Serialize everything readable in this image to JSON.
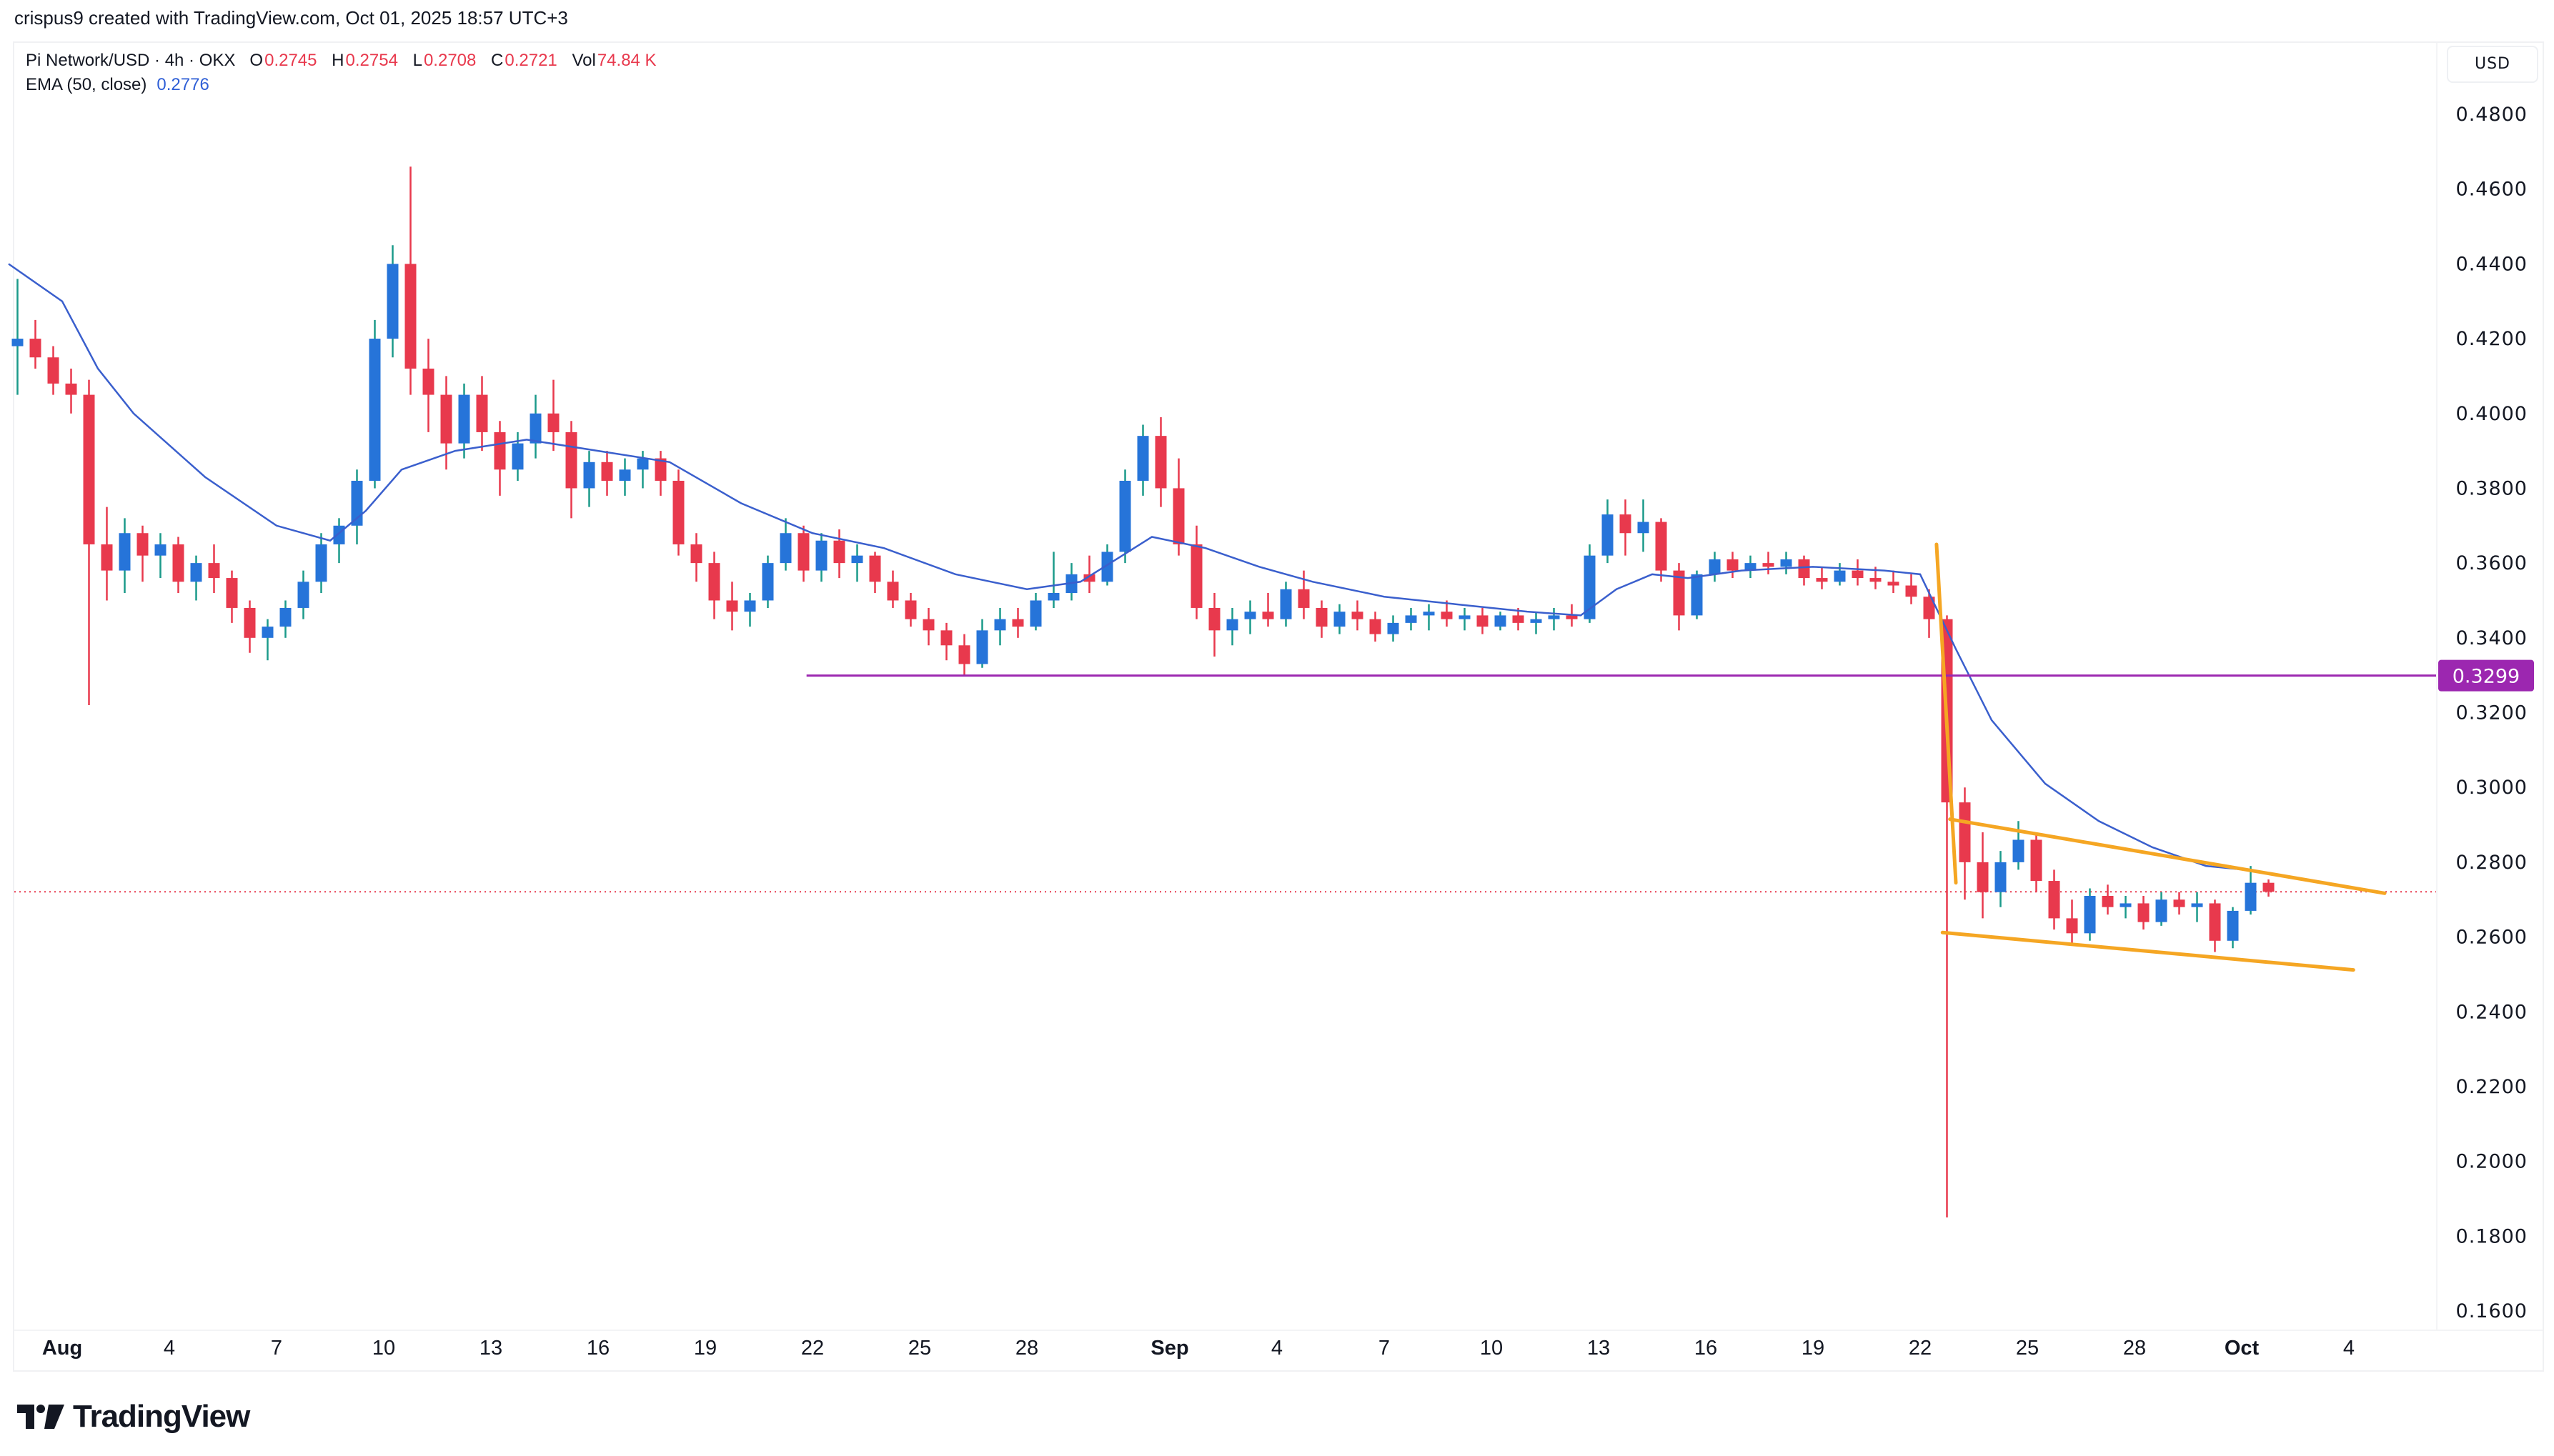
{
  "header": {
    "credit": "crispus9 created with TradingView.com, Oct 01, 2025 18:57 UTC+3"
  },
  "legend": {
    "symbol": "Pi Network/USD · 4h · OKX",
    "open_label": "O",
    "open": "0.2745",
    "high_label": "H",
    "high": "0.2754",
    "low_label": "L",
    "low": "0.2708",
    "close_label": "C",
    "close": "0.2721",
    "vol_label": "Vol",
    "vol": "74.84 K",
    "ema_label": "EMA (50, close)",
    "ema_value": "0.2776"
  },
  "currency_button": "USD",
  "brand": "TradingView",
  "colors": {
    "up": "#2674d9",
    "up_wick": "#1b9a8a",
    "down": "#e8394d",
    "ema": "#3a5fcd",
    "support": "#9c27b0",
    "pattern": "#f5a623",
    "last_price": "#e8394d"
  },
  "chart_data": {
    "type": "candlestick",
    "interval": "4h",
    "ylim": [
      0.15,
      0.49
    ],
    "y_ticks": [
      "0.4800",
      "0.4600",
      "0.4400",
      "0.4200",
      "0.4000",
      "0.3800",
      "0.3600",
      "0.3400",
      "0.3200",
      "0.3000",
      "0.2800",
      "0.2600",
      "0.2400",
      "0.2200",
      "0.2000",
      "0.1800",
      "0.1600"
    ],
    "x_ticks": [
      {
        "label": "Aug",
        "date": "2025-08-01",
        "bold": true
      },
      {
        "label": "4",
        "date": "2025-08-04"
      },
      {
        "label": "7",
        "date": "2025-08-07"
      },
      {
        "label": "10",
        "date": "2025-08-10"
      },
      {
        "label": "13",
        "date": "2025-08-13"
      },
      {
        "label": "16",
        "date": "2025-08-16"
      },
      {
        "label": "19",
        "date": "2025-08-19"
      },
      {
        "label": "22",
        "date": "2025-08-22"
      },
      {
        "label": "25",
        "date": "2025-08-25"
      },
      {
        "label": "28",
        "date": "2025-08-28"
      },
      {
        "label": "Sep",
        "date": "2025-09-01",
        "bold": true
      },
      {
        "label": "4",
        "date": "2025-09-04"
      },
      {
        "label": "7",
        "date": "2025-09-07"
      },
      {
        "label": "10",
        "date": "2025-09-10"
      },
      {
        "label": "13",
        "date": "2025-09-13"
      },
      {
        "label": "16",
        "date": "2025-09-16"
      },
      {
        "label": "19",
        "date": "2025-09-19"
      },
      {
        "label": "22",
        "date": "2025-09-22"
      },
      {
        "label": "25",
        "date": "2025-09-25"
      },
      {
        "label": "28",
        "date": "2025-09-28"
      },
      {
        "label": "Oct",
        "date": "2025-10-01",
        "bold": true
      },
      {
        "label": "4",
        "date": "2025-10-04"
      }
    ],
    "candles_columns": [
      "time",
      "open",
      "high",
      "low",
      "close"
    ],
    "candles": [
      [
        "2025-07-30 12:00",
        0.418,
        0.436,
        0.405,
        0.42
      ],
      [
        "2025-07-31 00:00",
        0.42,
        0.425,
        0.412,
        0.415
      ],
      [
        "2025-07-31 12:00",
        0.415,
        0.418,
        0.405,
        0.408
      ],
      [
        "2025-08-01 00:00",
        0.408,
        0.412,
        0.4,
        0.405
      ],
      [
        "2025-08-01 12:00",
        0.405,
        0.409,
        0.322,
        0.365
      ],
      [
        "2025-08-02 00:00",
        0.365,
        0.375,
        0.35,
        0.358
      ],
      [
        "2025-08-02 12:00",
        0.358,
        0.372,
        0.352,
        0.368
      ],
      [
        "2025-08-03 00:00",
        0.368,
        0.37,
        0.355,
        0.362
      ],
      [
        "2025-08-03 12:00",
        0.362,
        0.368,
        0.356,
        0.365
      ],
      [
        "2025-08-04 00:00",
        0.365,
        0.367,
        0.352,
        0.355
      ],
      [
        "2025-08-04 12:00",
        0.355,
        0.362,
        0.35,
        0.36
      ],
      [
        "2025-08-05 00:00",
        0.36,
        0.365,
        0.352,
        0.356
      ],
      [
        "2025-08-05 12:00",
        0.356,
        0.358,
        0.344,
        0.348
      ],
      [
        "2025-08-06 00:00",
        0.348,
        0.35,
        0.336,
        0.34
      ],
      [
        "2025-08-06 12:00",
        0.34,
        0.345,
        0.334,
        0.343
      ],
      [
        "2025-08-07 00:00",
        0.343,
        0.35,
        0.34,
        0.348
      ],
      [
        "2025-08-07 12:00",
        0.348,
        0.358,
        0.345,
        0.355
      ],
      [
        "2025-08-08 00:00",
        0.355,
        0.368,
        0.352,
        0.365
      ],
      [
        "2025-08-08 12:00",
        0.365,
        0.372,
        0.36,
        0.37
      ],
      [
        "2025-08-09 00:00",
        0.37,
        0.385,
        0.365,
        0.382
      ],
      [
        "2025-08-09 12:00",
        0.382,
        0.425,
        0.38,
        0.42
      ],
      [
        "2025-08-10 00:00",
        0.42,
        0.445,
        0.415,
        0.44
      ],
      [
        "2025-08-10 12:00",
        0.44,
        0.466,
        0.405,
        0.412
      ],
      [
        "2025-08-11 00:00",
        0.412,
        0.42,
        0.395,
        0.405
      ],
      [
        "2025-08-11 12:00",
        0.405,
        0.41,
        0.385,
        0.392
      ],
      [
        "2025-08-12 00:00",
        0.392,
        0.408,
        0.388,
        0.405
      ],
      [
        "2025-08-12 12:00",
        0.405,
        0.41,
        0.39,
        0.395
      ],
      [
        "2025-08-13 00:00",
        0.395,
        0.398,
        0.378,
        0.385
      ],
      [
        "2025-08-13 12:00",
        0.385,
        0.395,
        0.382,
        0.392
      ],
      [
        "2025-08-14 00:00",
        0.392,
        0.405,
        0.388,
        0.4
      ],
      [
        "2025-08-14 12:00",
        0.4,
        0.409,
        0.39,
        0.395
      ],
      [
        "2025-08-15 00:00",
        0.395,
        0.398,
        0.372,
        0.38
      ],
      [
        "2025-08-15 12:00",
        0.38,
        0.39,
        0.375,
        0.387
      ],
      [
        "2025-08-16 00:00",
        0.387,
        0.39,
        0.378,
        0.382
      ],
      [
        "2025-08-16 12:00",
        0.382,
        0.388,
        0.378,
        0.385
      ],
      [
        "2025-08-17 00:00",
        0.385,
        0.39,
        0.38,
        0.388
      ],
      [
        "2025-08-17 12:00",
        0.388,
        0.39,
        0.378,
        0.382
      ],
      [
        "2025-08-18 00:00",
        0.382,
        0.385,
        0.362,
        0.365
      ],
      [
        "2025-08-18 12:00",
        0.365,
        0.368,
        0.355,
        0.36
      ],
      [
        "2025-08-19 00:00",
        0.36,
        0.363,
        0.345,
        0.35
      ],
      [
        "2025-08-19 12:00",
        0.35,
        0.355,
        0.342,
        0.347
      ],
      [
        "2025-08-20 00:00",
        0.347,
        0.352,
        0.343,
        0.35
      ],
      [
        "2025-08-20 12:00",
        0.35,
        0.362,
        0.348,
        0.36
      ],
      [
        "2025-08-21 00:00",
        0.36,
        0.372,
        0.358,
        0.368
      ],
      [
        "2025-08-21 12:00",
        0.368,
        0.37,
        0.355,
        0.358
      ],
      [
        "2025-08-22 00:00",
        0.358,
        0.368,
        0.355,
        0.366
      ],
      [
        "2025-08-22 12:00",
        0.366,
        0.369,
        0.356,
        0.36
      ],
      [
        "2025-08-23 00:00",
        0.36,
        0.365,
        0.355,
        0.362
      ],
      [
        "2025-08-23 12:00",
        0.362,
        0.363,
        0.352,
        0.355
      ],
      [
        "2025-08-24 00:00",
        0.355,
        0.358,
        0.348,
        0.35
      ],
      [
        "2025-08-24 12:00",
        0.35,
        0.352,
        0.343,
        0.345
      ],
      [
        "2025-08-25 00:00",
        0.345,
        0.348,
        0.338,
        0.342
      ],
      [
        "2025-08-25 12:00",
        0.342,
        0.344,
        0.334,
        0.338
      ],
      [
        "2025-08-26 00:00",
        0.338,
        0.341,
        0.33,
        0.333
      ],
      [
        "2025-08-26 12:00",
        0.333,
        0.345,
        0.332,
        0.342
      ],
      [
        "2025-08-27 00:00",
        0.342,
        0.348,
        0.338,
        0.345
      ],
      [
        "2025-08-27 12:00",
        0.345,
        0.348,
        0.34,
        0.343
      ],
      [
        "2025-08-28 00:00",
        0.343,
        0.352,
        0.342,
        0.35
      ],
      [
        "2025-08-28 12:00",
        0.35,
        0.363,
        0.348,
        0.352
      ],
      [
        "2025-08-29 00:00",
        0.352,
        0.36,
        0.35,
        0.357
      ],
      [
        "2025-08-29 12:00",
        0.357,
        0.362,
        0.352,
        0.355
      ],
      [
        "2025-08-30 00:00",
        0.355,
        0.365,
        0.354,
        0.363
      ],
      [
        "2025-08-30 12:00",
        0.363,
        0.385,
        0.36,
        0.382
      ],
      [
        "2025-08-31 00:00",
        0.382,
        0.397,
        0.378,
        0.394
      ],
      [
        "2025-08-31 12:00",
        0.394,
        0.399,
        0.375,
        0.38
      ],
      [
        "2025-09-01 00:00",
        0.38,
        0.388,
        0.362,
        0.365
      ],
      [
        "2025-09-01 12:00",
        0.365,
        0.37,
        0.345,
        0.348
      ],
      [
        "2025-09-02 00:00",
        0.348,
        0.352,
        0.335,
        0.342
      ],
      [
        "2025-09-02 12:00",
        0.342,
        0.348,
        0.338,
        0.345
      ],
      [
        "2025-09-03 00:00",
        0.345,
        0.35,
        0.341,
        0.347
      ],
      [
        "2025-09-03 12:00",
        0.347,
        0.352,
        0.343,
        0.345
      ],
      [
        "2025-09-04 00:00",
        0.345,
        0.355,
        0.343,
        0.353
      ],
      [
        "2025-09-04 12:00",
        0.353,
        0.358,
        0.345,
        0.348
      ],
      [
        "2025-09-05 00:00",
        0.348,
        0.35,
        0.34,
        0.343
      ],
      [
        "2025-09-05 12:00",
        0.343,
        0.349,
        0.341,
        0.347
      ],
      [
        "2025-09-06 00:00",
        0.347,
        0.35,
        0.342,
        0.345
      ],
      [
        "2025-09-06 12:00",
        0.345,
        0.347,
        0.339,
        0.341
      ],
      [
        "2025-09-07 00:00",
        0.341,
        0.346,
        0.339,
        0.344
      ],
      [
        "2025-09-07 12:00",
        0.344,
        0.348,
        0.342,
        0.346
      ],
      [
        "2025-09-08 00:00",
        0.346,
        0.349,
        0.342,
        0.347
      ],
      [
        "2025-09-08 12:00",
        0.347,
        0.35,
        0.343,
        0.345
      ],
      [
        "2025-09-09 00:00",
        0.345,
        0.348,
        0.342,
        0.346
      ],
      [
        "2025-09-09 12:00",
        0.346,
        0.348,
        0.341,
        0.343
      ],
      [
        "2025-09-10 00:00",
        0.343,
        0.347,
        0.342,
        0.346
      ],
      [
        "2025-09-10 12:00",
        0.346,
        0.348,
        0.342,
        0.344
      ],
      [
        "2025-09-11 00:00",
        0.344,
        0.347,
        0.341,
        0.345
      ],
      [
        "2025-09-11 12:00",
        0.345,
        0.348,
        0.342,
        0.346
      ],
      [
        "2025-09-12 00:00",
        0.346,
        0.349,
        0.343,
        0.345
      ],
      [
        "2025-09-12 12:00",
        0.345,
        0.365,
        0.344,
        0.362
      ],
      [
        "2025-09-13 00:00",
        0.362,
        0.377,
        0.36,
        0.373
      ],
      [
        "2025-09-13 12:00",
        0.373,
        0.377,
        0.362,
        0.368
      ],
      [
        "2025-09-14 00:00",
        0.368,
        0.377,
        0.363,
        0.371
      ],
      [
        "2025-09-14 12:00",
        0.371,
        0.372,
        0.355,
        0.358
      ],
      [
        "2025-09-15 00:00",
        0.358,
        0.36,
        0.342,
        0.346
      ],
      [
        "2025-09-15 12:00",
        0.346,
        0.358,
        0.345,
        0.357
      ],
      [
        "2025-09-16 00:00",
        0.357,
        0.363,
        0.355,
        0.361
      ],
      [
        "2025-09-16 12:00",
        0.361,
        0.363,
        0.356,
        0.358
      ],
      [
        "2025-09-17 00:00",
        0.358,
        0.362,
        0.356,
        0.36
      ],
      [
        "2025-09-17 12:00",
        0.36,
        0.363,
        0.357,
        0.359
      ],
      [
        "2025-09-18 00:00",
        0.359,
        0.363,
        0.357,
        0.361
      ],
      [
        "2025-09-18 12:00",
        0.361,
        0.362,
        0.354,
        0.356
      ],
      [
        "2025-09-19 00:00",
        0.356,
        0.359,
        0.353,
        0.355
      ],
      [
        "2025-09-19 12:00",
        0.355,
        0.36,
        0.354,
        0.358
      ],
      [
        "2025-09-20 00:00",
        0.358,
        0.361,
        0.354,
        0.356
      ],
      [
        "2025-09-20 12:00",
        0.356,
        0.359,
        0.353,
        0.355
      ],
      [
        "2025-09-21 00:00",
        0.355,
        0.358,
        0.352,
        0.354
      ],
      [
        "2025-09-21 12:00",
        0.354,
        0.357,
        0.349,
        0.351
      ],
      [
        "2025-09-22 00:00",
        0.351,
        0.353,
        0.34,
        0.345
      ],
      [
        "2025-09-22 12:00",
        0.345,
        0.346,
        0.185,
        0.296
      ],
      [
        "2025-09-23 00:00",
        0.296,
        0.3,
        0.27,
        0.28
      ],
      [
        "2025-09-23 12:00",
        0.28,
        0.288,
        0.265,
        0.272
      ],
      [
        "2025-09-24 00:00",
        0.272,
        0.283,
        0.268,
        0.28
      ],
      [
        "2025-09-24 12:00",
        0.28,
        0.291,
        0.278,
        0.286
      ],
      [
        "2025-09-25 00:00",
        0.286,
        0.288,
        0.272,
        0.275
      ],
      [
        "2025-09-25 12:00",
        0.275,
        0.278,
        0.262,
        0.265
      ],
      [
        "2025-09-26 00:00",
        0.265,
        0.27,
        0.258,
        0.261
      ],
      [
        "2025-09-26 12:00",
        0.261,
        0.273,
        0.259,
        0.271
      ],
      [
        "2025-09-27 00:00",
        0.271,
        0.274,
        0.266,
        0.268
      ],
      [
        "2025-09-27 12:00",
        0.268,
        0.271,
        0.265,
        0.269
      ],
      [
        "2025-09-28 00:00",
        0.269,
        0.271,
        0.262,
        0.264
      ],
      [
        "2025-09-28 12:00",
        0.264,
        0.272,
        0.263,
        0.27
      ],
      [
        "2025-09-29 00:00",
        0.27,
        0.272,
        0.266,
        0.268
      ],
      [
        "2025-09-29 12:00",
        0.268,
        0.272,
        0.264,
        0.269
      ],
      [
        "2025-09-30 00:00",
        0.269,
        0.27,
        0.256,
        0.259
      ],
      [
        "2025-09-30 12:00",
        0.259,
        0.268,
        0.257,
        0.267
      ],
      [
        "2025-10-01 00:00",
        0.267,
        0.279,
        0.266,
        0.2745
      ],
      [
        "2025-10-01 12:00",
        0.2745,
        0.2754,
        0.2708,
        0.2721
      ]
    ],
    "ema_series": {
      "name": "EMA (50, close)",
      "points": [
        [
          "2025-07-30 12:00",
          0.44
        ],
        [
          "2025-08-01 00:00",
          0.43
        ],
        [
          "2025-08-02 00:00",
          0.412
        ],
        [
          "2025-08-03 00:00",
          0.4
        ],
        [
          "2025-08-05 00:00",
          0.383
        ],
        [
          "2025-08-07 00:00",
          0.37
        ],
        [
          "2025-08-08 12:00",
          0.366
        ],
        [
          "2025-08-09 12:00",
          0.374
        ],
        [
          "2025-08-10 12:00",
          0.385
        ],
        [
          "2025-08-12 00:00",
          0.39
        ],
        [
          "2025-08-14 00:00",
          0.393
        ],
        [
          "2025-08-16 00:00",
          0.39
        ],
        [
          "2025-08-18 00:00",
          0.387
        ],
        [
          "2025-08-20 00:00",
          0.376
        ],
        [
          "2025-08-22 00:00",
          0.368
        ],
        [
          "2025-08-24 00:00",
          0.364
        ],
        [
          "2025-08-26 00:00",
          0.357
        ],
        [
          "2025-08-28 00:00",
          0.353
        ],
        [
          "2025-08-29 12:00",
          0.355
        ],
        [
          "2025-08-30 12:00",
          0.361
        ],
        [
          "2025-08-31 12:00",
          0.367
        ],
        [
          "2025-09-02 00:00",
          0.364
        ],
        [
          "2025-09-03 12:00",
          0.359
        ],
        [
          "2025-09-05 00:00",
          0.355
        ],
        [
          "2025-09-07 00:00",
          0.351
        ],
        [
          "2025-09-09 00:00",
          0.349
        ],
        [
          "2025-09-11 00:00",
          0.347
        ],
        [
          "2025-09-12 12:00",
          0.346
        ],
        [
          "2025-09-13 12:00",
          0.353
        ],
        [
          "2025-09-14 12:00",
          0.357
        ],
        [
          "2025-09-15 12:00",
          0.356
        ],
        [
          "2025-09-17 00:00",
          0.358
        ],
        [
          "2025-09-19 00:00",
          0.359
        ],
        [
          "2025-09-21 00:00",
          0.358
        ],
        [
          "2025-09-22 00:00",
          0.357
        ],
        [
          "2025-09-23 00:00",
          0.337
        ],
        [
          "2025-09-24 00:00",
          0.318
        ],
        [
          "2025-09-25 12:00",
          0.301
        ],
        [
          "2025-09-27 00:00",
          0.291
        ],
        [
          "2025-09-28 12:00",
          0.284
        ],
        [
          "2025-09-30 00:00",
          0.279
        ],
        [
          "2025-10-01 12:00",
          0.2776
        ]
      ]
    },
    "drawings": {
      "support_line": {
        "price": 0.3299,
        "from": "2025-08-21 20:00",
        "label": "0.3299"
      },
      "last_price_line": {
        "price": 0.2721
      },
      "pole": [
        [
          "2025-09-22 11:00",
          0.365
        ],
        [
          "2025-09-23 00:00",
          0.2745
        ]
      ],
      "wedge_upper": [
        [
          "2025-09-22 20:00",
          0.2915
        ],
        [
          "2025-10-05 00:00",
          0.2717
        ]
      ],
      "wedge_lower": [
        [
          "2025-09-22 15:00",
          0.2612
        ],
        [
          "2025-10-04 03:00",
          0.2512
        ]
      ]
    }
  }
}
